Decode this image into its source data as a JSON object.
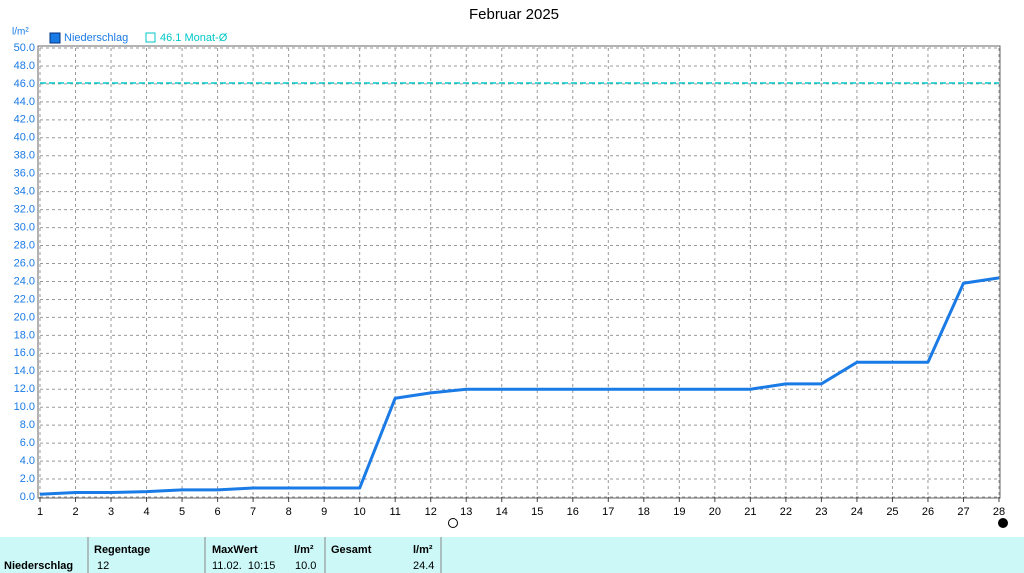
{
  "chart_data": {
    "type": "line",
    "title": "Februar 2025",
    "y_label": "l/m²",
    "x": [
      1,
      2,
      3,
      4,
      5,
      6,
      7,
      8,
      9,
      10,
      11,
      12,
      13,
      14,
      15,
      16,
      17,
      18,
      19,
      20,
      21,
      22,
      23,
      24,
      25,
      26,
      27,
      28
    ],
    "series": [
      {
        "name": "Niederschlag",
        "color": "#1a7be6",
        "values": [
          0.3,
          0.5,
          0.5,
          0.6,
          0.8,
          0.8,
          1.0,
          1.0,
          1.0,
          1.0,
          11.0,
          11.6,
          12.0,
          12.0,
          12.0,
          12.0,
          12.0,
          12.0,
          12.0,
          12.0,
          12.0,
          12.6,
          12.6,
          15.0,
          15.0,
          15.0,
          23.8,
          24.4
        ]
      }
    ],
    "reference_line": {
      "label": "46.1 Monat-Ø",
      "value": 46.1,
      "color": "#00c8c8"
    },
    "xlim": [
      1,
      28
    ],
    "xticks": [
      1,
      2,
      3,
      4,
      5,
      6,
      7,
      8,
      9,
      10,
      11,
      12,
      13,
      14,
      15,
      16,
      17,
      18,
      19,
      20,
      21,
      22,
      23,
      24,
      25,
      26,
      27,
      28
    ],
    "ylim": [
      0,
      50
    ],
    "yticks": [
      {
        "value": 0,
        "label": "0.0"
      },
      {
        "value": 2,
        "label": "2.0"
      },
      {
        "value": 4,
        "label": "4.0"
      },
      {
        "value": 6,
        "label": "6.0"
      },
      {
        "value": 8,
        "label": "8.0"
      },
      {
        "value": 10,
        "label": "10.0"
      },
      {
        "value": 12,
        "label": "12.0"
      },
      {
        "value": 14,
        "label": "14.0"
      },
      {
        "value": 16,
        "label": "16.0"
      },
      {
        "value": 18,
        "label": "18.0"
      },
      {
        "value": 20,
        "label": "20.0"
      },
      {
        "value": 22,
        "label": "22.0"
      },
      {
        "value": 24,
        "label": "24.0"
      },
      {
        "value": 26,
        "label": "26.0"
      },
      {
        "value": 28,
        "label": "28.0"
      },
      {
        "value": 30,
        "label": "30.0"
      },
      {
        "value": 32,
        "label": "32.0"
      },
      {
        "value": 34,
        "label": "34.0"
      },
      {
        "value": 36,
        "label": "36.0"
      },
      {
        "value": 38,
        "label": "38.0"
      },
      {
        "value": 40,
        "label": "40.0"
      },
      {
        "value": 42,
        "label": "42.0"
      },
      {
        "value": 44,
        "label": "44.0"
      },
      {
        "value": 46,
        "label": "46.0"
      },
      {
        "value": 48,
        "label": "48.0"
      },
      {
        "value": 50,
        "label": "50.0"
      }
    ],
    "grid": true
  },
  "stats": {
    "row_label": "Niederschlag",
    "headers": [
      "Regentage",
      "MaxWert",
      "l/m²",
      "Gesamt",
      "l/m²"
    ],
    "values": [
      "12",
      "11.02.  10:15",
      "10.0",
      "",
      "24.4"
    ]
  }
}
